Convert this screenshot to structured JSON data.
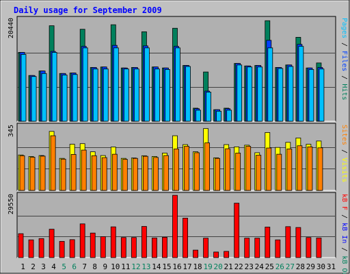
{
  "title": "Daily usage for September 2009",
  "days": [
    "1",
    "2",
    "3",
    "4",
    "5",
    "6",
    "7",
    "8",
    "9",
    "10",
    "11",
    "12",
    "13",
    "14",
    "15",
    "16",
    "17",
    "18",
    "19",
    "20",
    "21",
    "22",
    "23",
    "24",
    "25",
    "26",
    "27",
    "28",
    "29",
    "30",
    "31"
  ],
  "weekend_days": [
    "5",
    "6",
    "12",
    "13",
    "19",
    "20",
    "26",
    "27"
  ],
  "colors": {
    "background": "#c0c0c0",
    "panel": "#b0b0b0",
    "hits": "#00805c",
    "files": "#00c0ff",
    "pages": "#0040ff",
    "visits": "#ffff00",
    "sites": "#ff8000",
    "kb_in": "#0000ff",
    "kb_out": "#00805c",
    "kb_f": "#ff0000",
    "title": "#0000ff",
    "weekend_label": "#00805c",
    "weekday_label": "#000000",
    "separator": "#000000"
  },
  "chart_data": [
    {
      "type": "bar",
      "name": "hits-files-pages",
      "y_label_max": "20440",
      "ylim": [
        0,
        20440
      ],
      "side_label_parts": [
        {
          "text": "Pages",
          "color": "#00c0ff"
        },
        {
          "text": " / ",
          "color": "#000000"
        },
        {
          "text": "Files",
          "color": "#0040ff"
        },
        {
          "text": " / ",
          "color": "#000000"
        },
        {
          "text": "Hits",
          "color": "#00805c"
        }
      ],
      "series": [
        {
          "name": "Hits",
          "color": "#00805c",
          "values": [
            13700,
            9100,
            10000,
            19000,
            9500,
            9600,
            18300,
            10700,
            10800,
            19200,
            10600,
            10700,
            17800,
            10800,
            10600,
            18500,
            11100,
            2600,
            9800,
            2300,
            2600,
            11500,
            11000,
            11100,
            20000,
            10700,
            11200,
            16700,
            10600,
            11600
          ]
        },
        {
          "name": "Files",
          "color": "#0040ff",
          "values": [
            13700,
            9100,
            10000,
            13900,
            9500,
            9600,
            14900,
            10700,
            10800,
            15100,
            10600,
            10700,
            15000,
            10800,
            10600,
            14900,
            11100,
            2500,
            6000,
            2300,
            2500,
            11500,
            11000,
            11100,
            16100,
            10700,
            11200,
            15300,
            10600,
            10700
          ]
        },
        {
          "name": "Pages",
          "color": "#00c0ff",
          "values": [
            13300,
            8900,
            9500,
            13700,
            9200,
            9300,
            14600,
            10400,
            10400,
            14600,
            10400,
            10400,
            14600,
            10400,
            10300,
            14600,
            10900,
            2200,
            5800,
            2000,
            2200,
            11200,
            10800,
            10800,
            14600,
            10500,
            10900,
            14900,
            10300,
            10400
          ]
        }
      ]
    },
    {
      "type": "bar",
      "name": "visits-sites",
      "y_label_max": "345",
      "ylim": [
        0,
        345
      ],
      "side_label_parts": [
        {
          "text": "Sites",
          "color": "#ff8000"
        },
        {
          "text": " / ",
          "color": "#000000"
        },
        {
          "text": "Visits",
          "color": "#ffff00"
        }
      ],
      "series": [
        {
          "name": "Visits",
          "color": "#ffff00",
          "values": [
            188,
            180,
            185,
            313,
            170,
            245,
            248,
            205,
            185,
            230,
            170,
            172,
            184,
            180,
            198,
            290,
            243,
            205,
            328,
            173,
            243,
            231,
            240,
            200,
            307,
            228,
            255,
            278,
            245,
            262
          ]
        },
        {
          "name": "Sites",
          "color": "#ff8000",
          "values": [
            184,
            176,
            182,
            290,
            166,
            191,
            214,
            184,
            174,
            192,
            165,
            170,
            181,
            175,
            185,
            220,
            234,
            200,
            252,
            170,
            221,
            198,
            234,
            187,
            225,
            192,
            220,
            237,
            231,
            226
          ]
        }
      ]
    },
    {
      "type": "bar",
      "name": "kb-in-out",
      "y_label_max": "29550",
      "ylim": [
        0,
        29550
      ],
      "side_label_parts": [
        {
          "text": "kB F",
          "color": "#ff0000"
        },
        {
          "text": " / ",
          "color": "#000000"
        },
        {
          "text": "kB In",
          "color": "#0000ff"
        },
        {
          "text": " / ",
          "color": "#000000"
        },
        {
          "text": "kB Out",
          "color": "#00805c"
        }
      ],
      "series": [
        {
          "name": "kB F",
          "color": "#ff0000",
          "values": [
            11200,
            8300,
            8900,
            13300,
            7600,
            8400,
            15800,
            11500,
            9800,
            14400,
            9400,
            9400,
            14600,
            9200,
            9500,
            29200,
            18500,
            3500,
            9100,
            2600,
            2900,
            25500,
            9100,
            9100,
            14300,
            8300,
            14500,
            14100,
            9400,
            9200
          ]
        }
      ]
    }
  ]
}
